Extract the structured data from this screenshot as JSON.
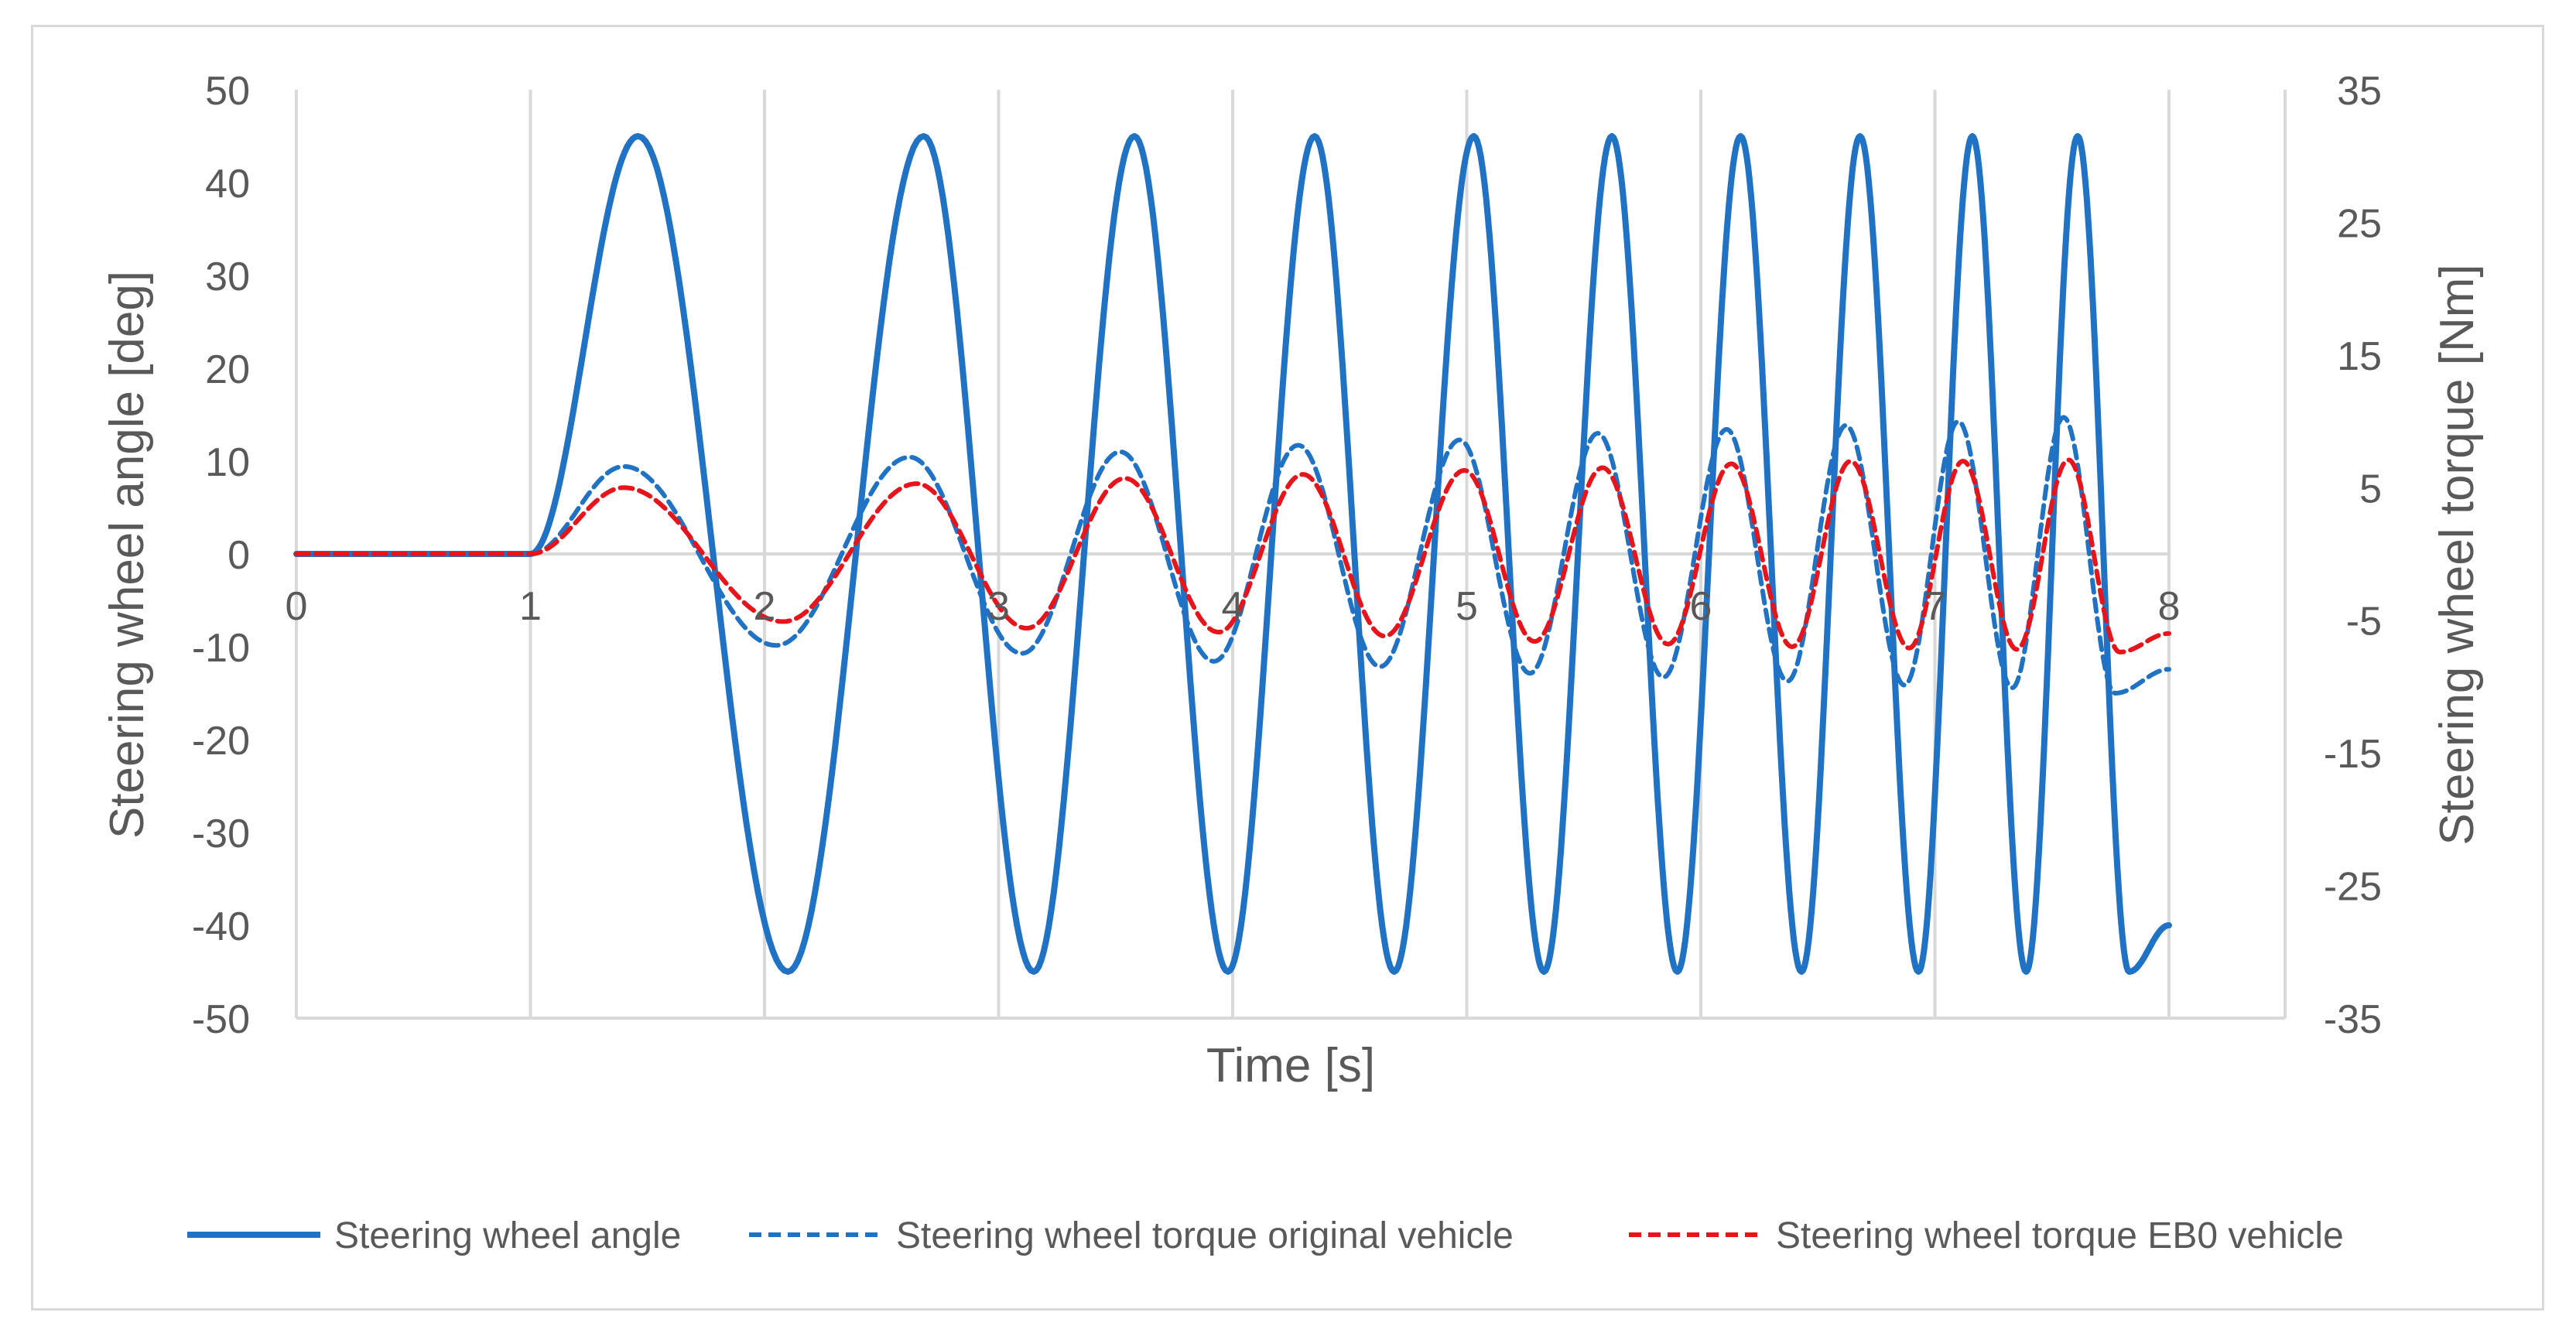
{
  "chart_data": {
    "type": "line",
    "title": "",
    "xlabel": "Time [s]",
    "ylabel_left": "Steering wheel angle [deg]",
    "ylabel_right": "Steering wheel torque [Nm]",
    "xlim": [
      0,
      8
    ],
    "ylim_left": [
      -50,
      50
    ],
    "ylim_right": [
      -35,
      35
    ],
    "x_ticks": [
      "0",
      "1",
      "2",
      "3",
      "4",
      "5",
      "6",
      "7",
      "8"
    ],
    "y_left_ticks": [
      "50",
      "40",
      "30",
      "20",
      "10",
      "0",
      "-10",
      "-20",
      "-30",
      "-40",
      "-50"
    ],
    "y_right_ticks": [
      "35",
      "25",
      "15",
      "5",
      "-5",
      "-15",
      "-25",
      "-35"
    ],
    "grid": "vertical",
    "legend_position": "bottom",
    "colors": {
      "angle": "#1f72c4",
      "torque_original": "#1f72c4",
      "torque_eb0": "#e8141b",
      "grid": "#d9d9d9",
      "text": "#595959"
    },
    "series": [
      {
        "name": "Steering wheel angle",
        "axis": "left",
        "style": "solid",
        "x": [
          0,
          1,
          1.46,
          2.1,
          2.68,
          3.15,
          3.58,
          3.98,
          4.35,
          4.69,
          5.03,
          5.33,
          5.62,
          5.9,
          6.17,
          6.43,
          6.68,
          6.93,
          7.16,
          7.39,
          7.61,
          7.83,
          8
        ],
        "y": [
          0,
          0,
          45,
          -45,
          45,
          -45,
          45,
          -45,
          45,
          -45,
          45,
          -45,
          45,
          -45,
          45,
          -45,
          45,
          -45,
          45,
          -45,
          45,
          -45,
          -40
        ]
      },
      {
        "name": "Steering wheel torque original vehicle",
        "axis": "right",
        "style": "dashed",
        "x": [
          0,
          1,
          1.4,
          2.05,
          2.62,
          3.1,
          3.52,
          3.92,
          4.28,
          4.63,
          4.97,
          5.27,
          5.56,
          5.84,
          6.11,
          6.37,
          6.62,
          6.87,
          7.1,
          7.33,
          7.55,
          7.77,
          8
        ],
        "y": [
          0,
          0,
          6.6,
          -6.9,
          7.3,
          -7.5,
          7.7,
          -8.1,
          8.2,
          -8.5,
          8.6,
          -9.0,
          9.1,
          -9.3,
          9.4,
          -9.6,
          9.7,
          -9.9,
          10.0,
          -10.1,
          10.3,
          -10.5,
          -8.7
        ]
      },
      {
        "name": "Steering wheel torque EB0 vehicle",
        "axis": "right",
        "style": "dashed",
        "x": [
          0,
          1,
          1.4,
          2.08,
          2.65,
          3.12,
          3.54,
          3.94,
          4.3,
          4.65,
          4.99,
          5.29,
          5.58,
          5.86,
          6.13,
          6.39,
          6.64,
          6.89,
          7.12,
          7.35,
          7.57,
          7.79,
          8
        ],
        "y": [
          0,
          0,
          5.0,
          -5.1,
          5.3,
          -5.6,
          5.7,
          -5.9,
          6.0,
          -6.2,
          6.3,
          -6.6,
          6.5,
          -6.8,
          6.8,
          -7.0,
          7.0,
          -7.1,
          7.0,
          -7.2,
          7.1,
          -7.4,
          -6.0
        ]
      }
    ]
  }
}
